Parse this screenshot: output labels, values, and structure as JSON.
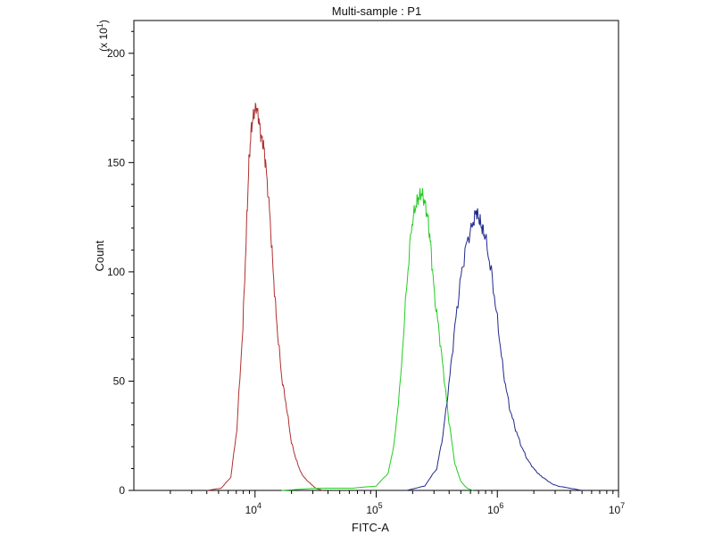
{
  "chart_data": {
    "type": "line",
    "title": "Multi-sample : P1",
    "xlabel": "FITC-A",
    "ylabel": "Count",
    "y_multiplier_label": "(x 10",
    "y_multiplier_exp": "1",
    "y_multiplier_close": ")",
    "x_scale": "log",
    "xlim": [
      1000,
      10000000
    ],
    "ylim": [
      0,
      215
    ],
    "grid": false,
    "legend": "none",
    "x_ticks": [
      {
        "value": 10000,
        "base": "10",
        "exp": "4"
      },
      {
        "value": 100000,
        "base": "10",
        "exp": "5"
      },
      {
        "value": 1000000,
        "base": "10",
        "exp": "6"
      },
      {
        "value": 10000000,
        "base": "10",
        "exp": "7"
      }
    ],
    "y_ticks": [
      0,
      50,
      100,
      150,
      200
    ],
    "series": [
      {
        "color": "#b03030",
        "x": [
          3980,
          5250,
          6310,
          7080,
          7940,
          8510,
          8910,
          9330,
          9770,
          10230,
          10720,
          11220,
          11750,
          12300,
          13180,
          14130,
          15140,
          16600,
          18200,
          19950,
          21880,
          23990,
          26300,
          28840,
          31620,
          36310
        ],
        "y": [
          0,
          1,
          6,
          28,
          75,
          120,
          150,
          166,
          172,
          176,
          170,
          162,
          158,
          148,
          128,
          100,
          76,
          52,
          38,
          22,
          14,
          8,
          5,
          3,
          1,
          0
        ]
      },
      {
        "color": "#22cc22",
        "x": [
          16600,
          31620,
          63100,
          100000,
          125900,
          141300,
          158500,
          177800,
          195000,
          211300,
          223900,
          237100,
          251200,
          266100,
          281800,
          301900,
          331100,
          363100,
          398100,
          446700,
          501200,
          562300,
          631000
        ],
        "y": [
          0,
          1,
          1,
          2,
          8,
          22,
          50,
          92,
          120,
          130,
          134,
          136,
          132,
          125,
          112,
          90,
          72,
          52,
          32,
          12,
          4,
          1,
          0
        ]
      },
      {
        "color": "#1f2a8a",
        "x": [
          177800,
          251200,
          316200,
          354800,
          398100,
          446700,
          501200,
          562300,
          631000,
          668300,
          707900,
          749900,
          794300,
          891300,
          1000000,
          1122000,
          1259000,
          1413000,
          1585000,
          1778000,
          1995000,
          2239000,
          2512000,
          2818000,
          3162000,
          3981000,
          5012000
        ],
        "y": [
          0,
          2,
          10,
          25,
          48,
          75,
          98,
          114,
          122,
          128,
          124,
          120,
          116,
          100,
          78,
          54,
          38,
          28,
          20,
          14,
          10,
          7,
          5,
          3,
          2,
          1,
          0
        ]
      }
    ]
  }
}
